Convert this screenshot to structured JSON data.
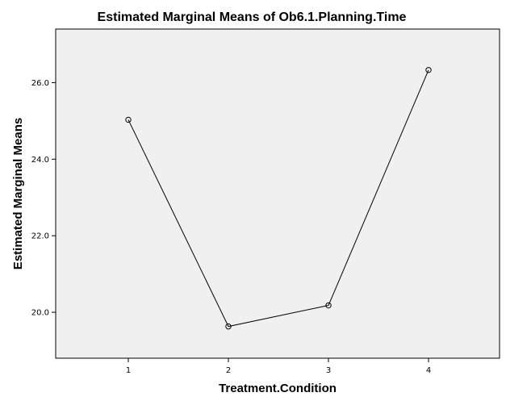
{
  "chart_data": {
    "type": "line",
    "title": "Estimated Marginal Means of Ob6.1.Planning.Time",
    "xlabel": "Treatment.Condition",
    "ylabel": "Estimated Marginal Means",
    "categories": [
      "1",
      "2",
      "3",
      "4"
    ],
    "series": [
      {
        "values": [
          25.03,
          19.63,
          20.18,
          26.33
        ]
      }
    ],
    "ylim": [
      18.8,
      27.4
    ],
    "yticks": [
      20.0,
      22.0,
      24.0,
      26.0
    ],
    "ytick_labels": [
      "20.0",
      "22.0",
      "24.0",
      "26.0"
    ],
    "grid": false,
    "colors": {
      "plot_background": "#f0f0f0",
      "line": "#000000",
      "frame": "#000000"
    }
  }
}
